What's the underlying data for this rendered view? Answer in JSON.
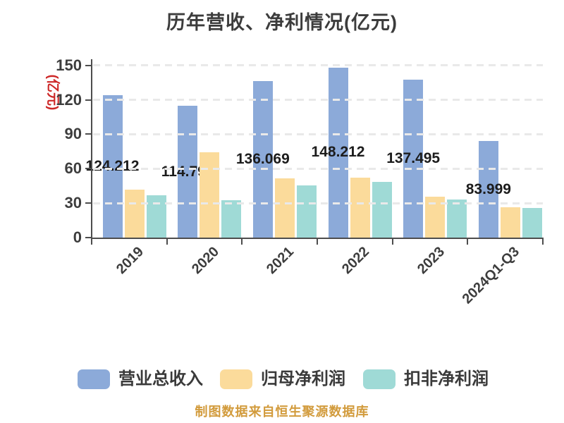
{
  "title": "历年营收、净利情况(亿元)",
  "y_axis_unit": "(亿元)",
  "footer": "制图数据来自恒生聚源数据库",
  "colors": {
    "revenue_bar": "#8caad9",
    "net_profit_bar": "#fbdb9b",
    "non_gaap_bar": "#9fdad6",
    "title_text": "#3c3c3c",
    "axis_text": "#3d3d3d",
    "value_label_text": "#1c1c1c",
    "y_unit_text": "#cd2727",
    "footer_text": "#d29b3c",
    "gridline": "#e9e9e9",
    "axis_line": "#4d4d4d"
  },
  "chart_data": {
    "type": "bar",
    "title": "历年营收、净利情况(亿元)",
    "ylabel": "(亿元)",
    "categories": [
      "2019",
      "2020",
      "2021",
      "2022",
      "2023",
      "2024Q1-Q3"
    ],
    "series": [
      {
        "name": "营业总收入",
        "color": "#8caad9",
        "values": [
          124.212,
          114.795,
          136.069,
          148.212,
          137.495,
          83.999
        ],
        "data_labels": [
          "124.212",
          "114.795",
          "136.069",
          "148.212",
          "137.495",
          "83.999"
        ]
      },
      {
        "name": "归母净利润",
        "color": "#fbdb9b",
        "values": [
          41.8,
          74.0,
          51.6,
          51.9,
          35.5,
          26.1
        ]
      },
      {
        "name": "扣非净利润",
        "color": "#9fdad6",
        "values": [
          37.1,
          32.8,
          45.5,
          48.2,
          33.2,
          25.6
        ]
      }
    ],
    "ylim": [
      0,
      150
    ],
    "yticks": [
      0,
      30,
      60,
      90,
      120,
      150
    ],
    "grid": "horizontal-dashed",
    "legend_position": "bottom"
  }
}
